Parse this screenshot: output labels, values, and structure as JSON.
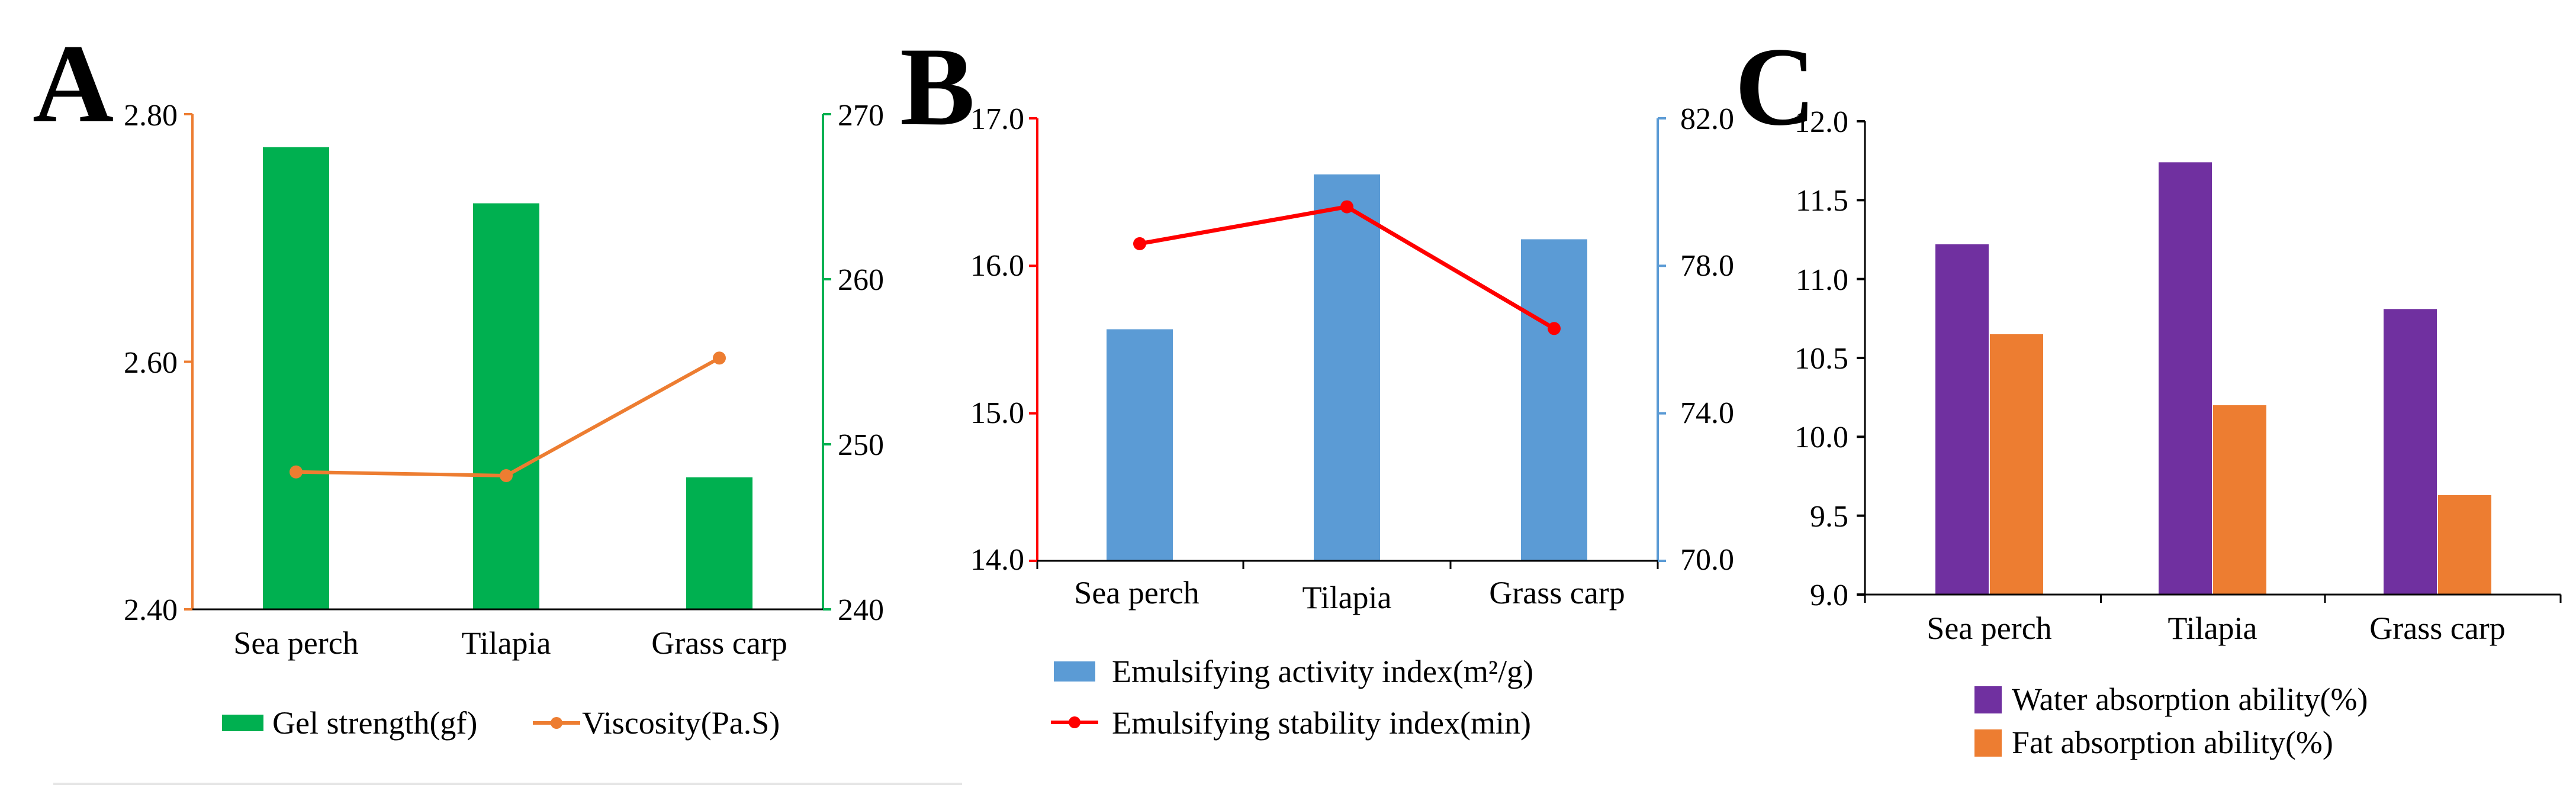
{
  "chart_data": [
    {
      "panel": "A",
      "type": "bar+line",
      "categories": [
        "Sea perch",
        "Tilapia",
        "Grass carp"
      ],
      "left_axis": {
        "ylim": [
          2.4,
          2.8
        ],
        "ticks": [
          "2.40",
          "2.60",
          "2.80"
        ],
        "ticks_values": [
          2.4,
          2.6,
          2.8
        ],
        "color": "#ED7D31"
      },
      "right_axis": {
        "ylim": [
          240,
          270
        ],
        "ticks": [
          "240",
          "250",
          "260",
          "270"
        ],
        "ticks_values": [
          240,
          250,
          260,
          270
        ],
        "color": "#00B050"
      },
      "series": [
        {
          "name": "Gel strength(gf)",
          "kind": "bar",
          "axis": "right",
          "color": "#00B050",
          "values": [
            268,
            264.6,
            248
          ]
        },
        {
          "name": "Viscosity(Pa.S)",
          "kind": "line",
          "axis": "left",
          "color": "#ED7D31",
          "values": [
            2.511,
            2.508,
            2.603
          ]
        }
      ]
    },
    {
      "panel": "B",
      "type": "bar+line",
      "categories": [
        "Sea perch",
        "Tilapia",
        "Grass carp"
      ],
      "left_axis": {
        "ylim": [
          14.0,
          17.0
        ],
        "ticks": [
          "14.0",
          "15.0",
          "16.0",
          "17.0"
        ],
        "ticks_values": [
          14.0,
          15.0,
          16.0,
          17.0
        ],
        "color": "#FF0000"
      },
      "right_axis": {
        "ylim": [
          70.0,
          82.0
        ],
        "ticks": [
          "70.0",
          "74.0",
          "78.0",
          "82.0"
        ],
        "ticks_values": [
          70.0,
          74.0,
          78.0,
          82.0
        ],
        "color": "#5B9BD5"
      },
      "series": [
        {
          "name": "Emulsifying activity index(m²/g)",
          "kind": "bar",
          "axis": "left",
          "color": "#5B9BD5",
          "values": [
            15.57,
            16.62,
            16.18
          ]
        },
        {
          "name": "Emulsifying stability index(min)",
          "kind": "line",
          "axis": "right",
          "color": "#FF0000",
          "values": [
            78.6,
            79.6,
            76.3
          ]
        }
      ]
    },
    {
      "panel": "C",
      "type": "bar",
      "categories": [
        "Sea perch",
        "Tilapia",
        "Grass carp"
      ],
      "ylim": [
        9.0,
        12.0
      ],
      "ticks": [
        "9.0",
        "9.5",
        "10.0",
        "10.5",
        "11.0",
        "11.5",
        "12.0"
      ],
      "ticks_values": [
        9.0,
        9.5,
        10.0,
        10.5,
        11.0,
        11.5,
        12.0
      ],
      "series": [
        {
          "name": "Water absorption ability(%)",
          "color": "#7030A0",
          "values": [
            11.22,
            11.74,
            10.81
          ]
        },
        {
          "name": "Fat absorption ability(%)",
          "color": "#ED7D31",
          "values": [
            10.65,
            10.2,
            9.63
          ]
        }
      ]
    }
  ],
  "axis_color": "#000000"
}
